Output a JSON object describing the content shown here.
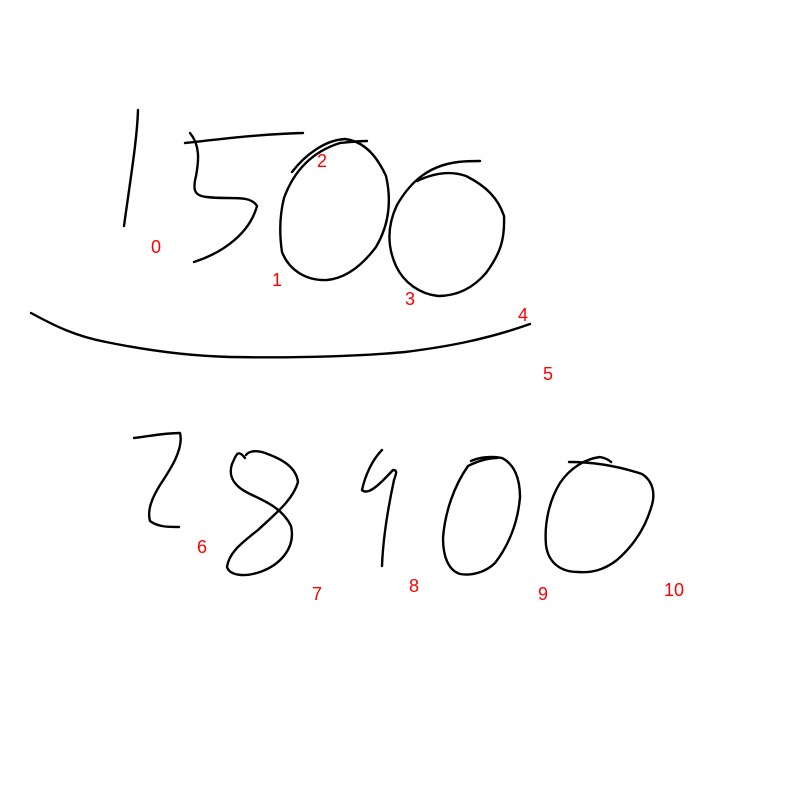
{
  "colors": {
    "background": "#ffffff",
    "ink": "#000000",
    "label": "#ff0000"
  },
  "labels": [
    "0",
    "1",
    "2",
    "3",
    "4",
    "5",
    "6",
    "7",
    "8",
    "9",
    "10"
  ]
}
